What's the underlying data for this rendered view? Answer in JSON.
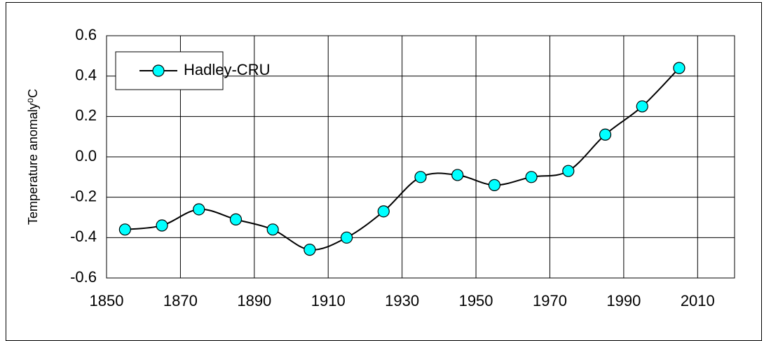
{
  "chart_data": {
    "type": "line",
    "y_label": "Temperature anomaly⁰C",
    "x": [
      1855,
      1865,
      1875,
      1885,
      1895,
      1905,
      1915,
      1925,
      1935,
      1945,
      1955,
      1965,
      1975,
      1985,
      1995,
      2005
    ],
    "series": [
      {
        "name": "Hadley-CRU",
        "color": "#00ffff",
        "values": [
          -0.36,
          -0.34,
          -0.26,
          -0.31,
          -0.36,
          -0.46,
          -0.4,
          -0.27,
          -0.1,
          -0.09,
          -0.14,
          -0.1,
          -0.07,
          0.11,
          0.25,
          0.44
        ]
      }
    ],
    "xlim": [
      1850,
      2020
    ],
    "xticks": [
      1850,
      1870,
      1890,
      1910,
      1930,
      1950,
      1970,
      1990,
      2010
    ],
    "ylim": [
      -0.6,
      0.6
    ],
    "yticks": [
      -0.6,
      -0.4,
      -0.2,
      {
        "value": 0,
        "label": "0.0"
      },
      0.2,
      0.4,
      0.6
    ],
    "grid": true,
    "legend": "top-left"
  }
}
